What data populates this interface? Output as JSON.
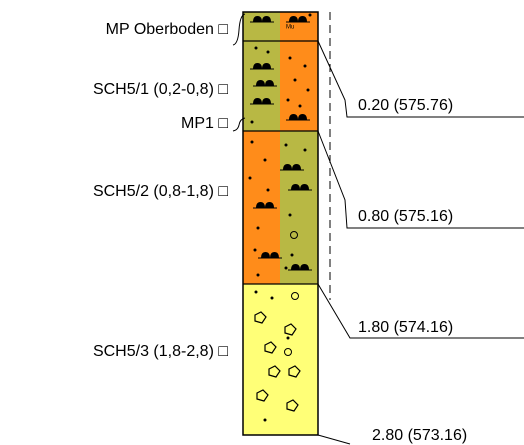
{
  "left_labels": [
    "MP Oberboden □",
    "SCH5/1 (0,2-0,8) □",
    "MP1 □",
    "SCH5/2 (0,8-1,8) □",
    "SCH5/3 (1,8-2,8) □"
  ],
  "depth_labels": [
    "0.20 (575.76)",
    "0.80 (575.16)",
    "1.80 (574.16)",
    "2.80 (573.16)"
  ],
  "layer_code": "Mu"
}
